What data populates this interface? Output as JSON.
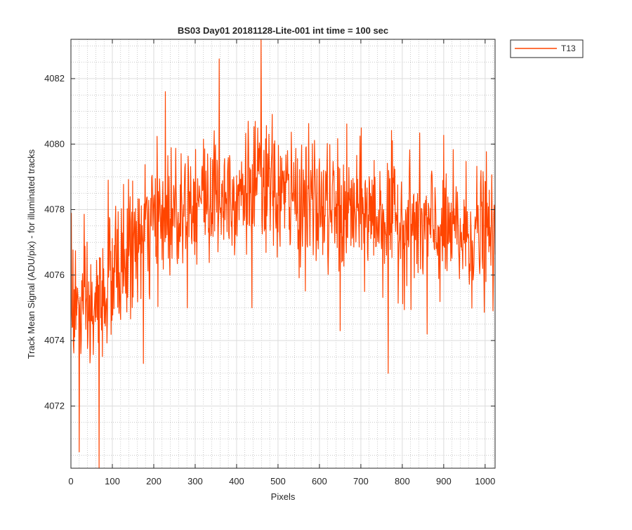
{
  "chart_data": {
    "type": "line",
    "title": "BS03 Day01 20181128-Lite-001 int time = 100 sec",
    "xlabel": "Pixels",
    "ylabel": "Track Mean Signal (ADU/pix) - for illuminated tracks",
    "xlim": [
      0,
      1024
    ],
    "ylim": [
      4070.1,
      4083.2
    ],
    "x_ticks": [
      0,
      100,
      200,
      300,
      400,
      500,
      600,
      700,
      800,
      900,
      1000
    ],
    "y_ticks": [
      4072,
      4074,
      4076,
      4078,
      4080,
      4082
    ],
    "grid": true,
    "minor_grid": true,
    "legend_position": "outside-top-right",
    "series": [
      {
        "name": "T13",
        "color": "#FF4500",
        "x_start": 1,
        "x_step": 1,
        "n_points": 1024,
        "profile_x": [
          0,
          50,
          100,
          150,
          200,
          250,
          300,
          350,
          400,
          450,
          500,
          550,
          600,
          650,
          700,
          750,
          800,
          850,
          900,
          950,
          1000,
          1024
        ],
        "profile_y": [
          4075.2,
          4074.7,
          4075.9,
          4076.9,
          4077.5,
          4078.0,
          4078.4,
          4078.4,
          4078.6,
          4078.7,
          4078.5,
          4078.3,
          4078.1,
          4077.9,
          4077.9,
          4077.8,
          4077.6,
          4077.4,
          4077.3,
          4077.2,
          4077.3,
          4077.1
        ],
        "noise_amplitude": 1.0,
        "extremes": [
          {
            "x": 1,
            "y": 4077.9
          },
          {
            "x": 20,
            "y": 4070.6
          },
          {
            "x": 68,
            "y": 4070.1
          },
          {
            "x": 90,
            "y": 4078.9
          },
          {
            "x": 175,
            "y": 4073.3
          },
          {
            "x": 228,
            "y": 4081.6
          },
          {
            "x": 358,
            "y": 4082.6
          },
          {
            "x": 459,
            "y": 4083.2
          },
          {
            "x": 437,
            "y": 4075.0
          },
          {
            "x": 650,
            "y": 4074.3
          },
          {
            "x": 766,
            "y": 4073.0
          },
          {
            "x": 860,
            "y": 4074.2
          }
        ]
      }
    ]
  }
}
